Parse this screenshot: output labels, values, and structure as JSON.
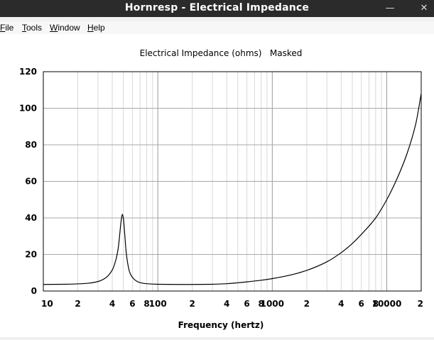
{
  "window": {
    "title": "Hornresp - Electrical Impedance",
    "minimize_glyph": "—",
    "close_glyph": "✕"
  },
  "menu": [
    {
      "first": "F",
      "rest": "ile"
    },
    {
      "first": "T",
      "rest": "ools"
    },
    {
      "first": "W",
      "rest": "indow"
    },
    {
      "first": "H",
      "rest": "elp"
    }
  ],
  "chart_data": {
    "type": "line",
    "title": "Electrical Impedance (ohms)   Masked",
    "xlabel": "Frequency (hertz)",
    "ylabel": "",
    "x_scale": "log",
    "xlim": [
      10,
      20000
    ],
    "ylim": [
      0,
      120
    ],
    "y_ticks": [
      0,
      20,
      40,
      60,
      80,
      100,
      120
    ],
    "x_tick_labels": [
      {
        "value": 10,
        "label": "10"
      },
      {
        "value": 20,
        "label": "2"
      },
      {
        "value": 40,
        "label": "4"
      },
      {
        "value": 60,
        "label": "6"
      },
      {
        "value": 80,
        "label": "8"
      },
      {
        "value": 100,
        "label": "100"
      },
      {
        "value": 200,
        "label": "2"
      },
      {
        "value": 400,
        "label": "4"
      },
      {
        "value": 600,
        "label": "6"
      },
      {
        "value": 800,
        "label": "8"
      },
      {
        "value": 1000,
        "label": "1000"
      },
      {
        "value": 2000,
        "label": "2"
      },
      {
        "value": 4000,
        "label": "4"
      },
      {
        "value": 6000,
        "label": "6"
      },
      {
        "value": 8000,
        "label": "8"
      },
      {
        "value": 10000,
        "label": "10000"
      },
      {
        "value": 20000,
        "label": "2"
      }
    ],
    "grid": true,
    "series": [
      {
        "color": "#000000",
        "x": [
          10,
          15,
          20,
          25,
          30,
          35,
          40,
          43,
          45,
          46,
          47,
          48,
          49,
          50,
          51,
          52,
          53,
          55,
          57,
          60,
          65,
          70,
          80,
          100,
          150,
          200,
          300,
          400,
          500,
          600,
          800,
          1000,
          1500,
          2000,
          3000,
          4000,
          5000,
          6000,
          8000,
          10000,
          12000,
          15000,
          18000,
          20000
        ],
        "y": [
          3.6,
          3.7,
          3.9,
          4.3,
          5.2,
          7.2,
          11.5,
          17,
          23,
          28,
          34,
          39,
          42,
          40,
          34,
          27,
          21,
          14,
          10,
          7.5,
          5.5,
          4.6,
          4.0,
          3.7,
          3.6,
          3.6,
          3.7,
          4.0,
          4.5,
          5.0,
          5.9,
          6.8,
          9.0,
          11.3,
          16.0,
          21,
          26,
          31,
          40,
          50,
          60,
          75,
          92,
          108
        ]
      }
    ]
  }
}
